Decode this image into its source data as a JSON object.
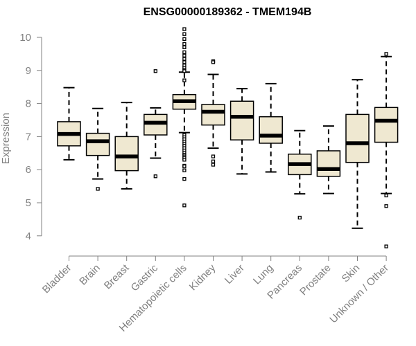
{
  "chart_data": {
    "type": "boxplot",
    "title": "ENSG00000189362 - TMEM194B",
    "xlabel": "",
    "ylabel": "Expression",
    "ylim": [
      3.5,
      10.4
    ],
    "yticks": [
      4,
      5,
      6,
      7,
      8,
      9,
      10
    ],
    "yticks_labels": [
      "4",
      "5",
      "6",
      "7",
      "8",
      "9",
      "10"
    ],
    "box_fill": "#efe8d1",
    "box_stroke": "#000000",
    "axis_color": "#808080",
    "categories": [
      "Bladder",
      "Brain",
      "Breast",
      "Gastric",
      "Hematopoietic cells",
      "Kidney",
      "Liver",
      "Lung",
      "Pancreas",
      "Prostate",
      "Skin",
      "Unknown / Other"
    ],
    "boxes": [
      {
        "category": "Bladder",
        "whisker_low": 6.3,
        "q1": 6.72,
        "median": 7.08,
        "q3": 7.45,
        "whisker_high": 8.48,
        "outliers": []
      },
      {
        "category": "Brain",
        "whisker_low": 5.72,
        "q1": 6.43,
        "median": 6.86,
        "q3": 7.1,
        "whisker_high": 7.85,
        "outliers": [
          5.42
        ]
      },
      {
        "category": "Breast",
        "whisker_low": 5.42,
        "q1": 5.97,
        "median": 6.4,
        "q3": 7.0,
        "whisker_high": 8.03,
        "outliers": []
      },
      {
        "category": "Gastric",
        "whisker_low": 6.35,
        "q1": 7.05,
        "median": 7.42,
        "q3": 7.67,
        "whisker_high": 7.87,
        "outliers": [
          8.98,
          5.8
        ]
      },
      {
        "category": "Hematopoietic cells",
        "whisker_low": 7.12,
        "q1": 7.83,
        "median": 8.07,
        "q3": 8.27,
        "whisker_high": 8.95,
        "outliers": [
          10.25,
          10.1,
          9.95,
          9.8,
          9.7,
          9.55,
          9.45,
          9.35,
          9.25,
          9.15,
          9.08,
          9.02,
          8.98,
          8.7,
          7.05,
          6.98,
          6.92,
          6.85,
          6.78,
          6.72,
          6.65,
          6.58,
          6.5,
          6.45,
          6.4,
          6.35,
          6.3,
          6.12,
          6.1,
          5.98,
          5.72,
          4.92
        ]
      },
      {
        "category": "Kidney",
        "whisker_low": 6.65,
        "q1": 7.35,
        "median": 7.75,
        "q3": 7.97,
        "whisker_high": 8.88,
        "outliers": [
          9.28,
          9.25,
          6.4,
          6.25,
          6.15
        ]
      },
      {
        "category": "Liver",
        "whisker_low": 5.87,
        "q1": 6.9,
        "median": 7.6,
        "q3": 8.07,
        "whisker_high": 8.45,
        "outliers": []
      },
      {
        "category": "Lung",
        "whisker_low": 5.93,
        "q1": 6.8,
        "median": 7.03,
        "q3": 7.6,
        "whisker_high": 8.6,
        "outliers": []
      },
      {
        "category": "Pancreas",
        "whisker_low": 5.27,
        "q1": 5.85,
        "median": 6.17,
        "q3": 6.47,
        "whisker_high": 7.18,
        "outliers": [
          4.55
        ]
      },
      {
        "category": "Prostate",
        "whisker_low": 5.28,
        "q1": 5.8,
        "median": 6.02,
        "q3": 6.57,
        "whisker_high": 7.32,
        "outliers": []
      },
      {
        "category": "Skin",
        "whisker_low": 4.23,
        "q1": 6.22,
        "median": 6.8,
        "q3": 7.67,
        "whisker_high": 8.72,
        "outliers": []
      },
      {
        "category": "Unknown / Other",
        "whisker_low": 5.28,
        "q1": 6.83,
        "median": 7.48,
        "q3": 7.88,
        "whisker_high": 9.42,
        "outliers": [
          9.5,
          5.22,
          4.9,
          3.68
        ]
      }
    ]
  }
}
